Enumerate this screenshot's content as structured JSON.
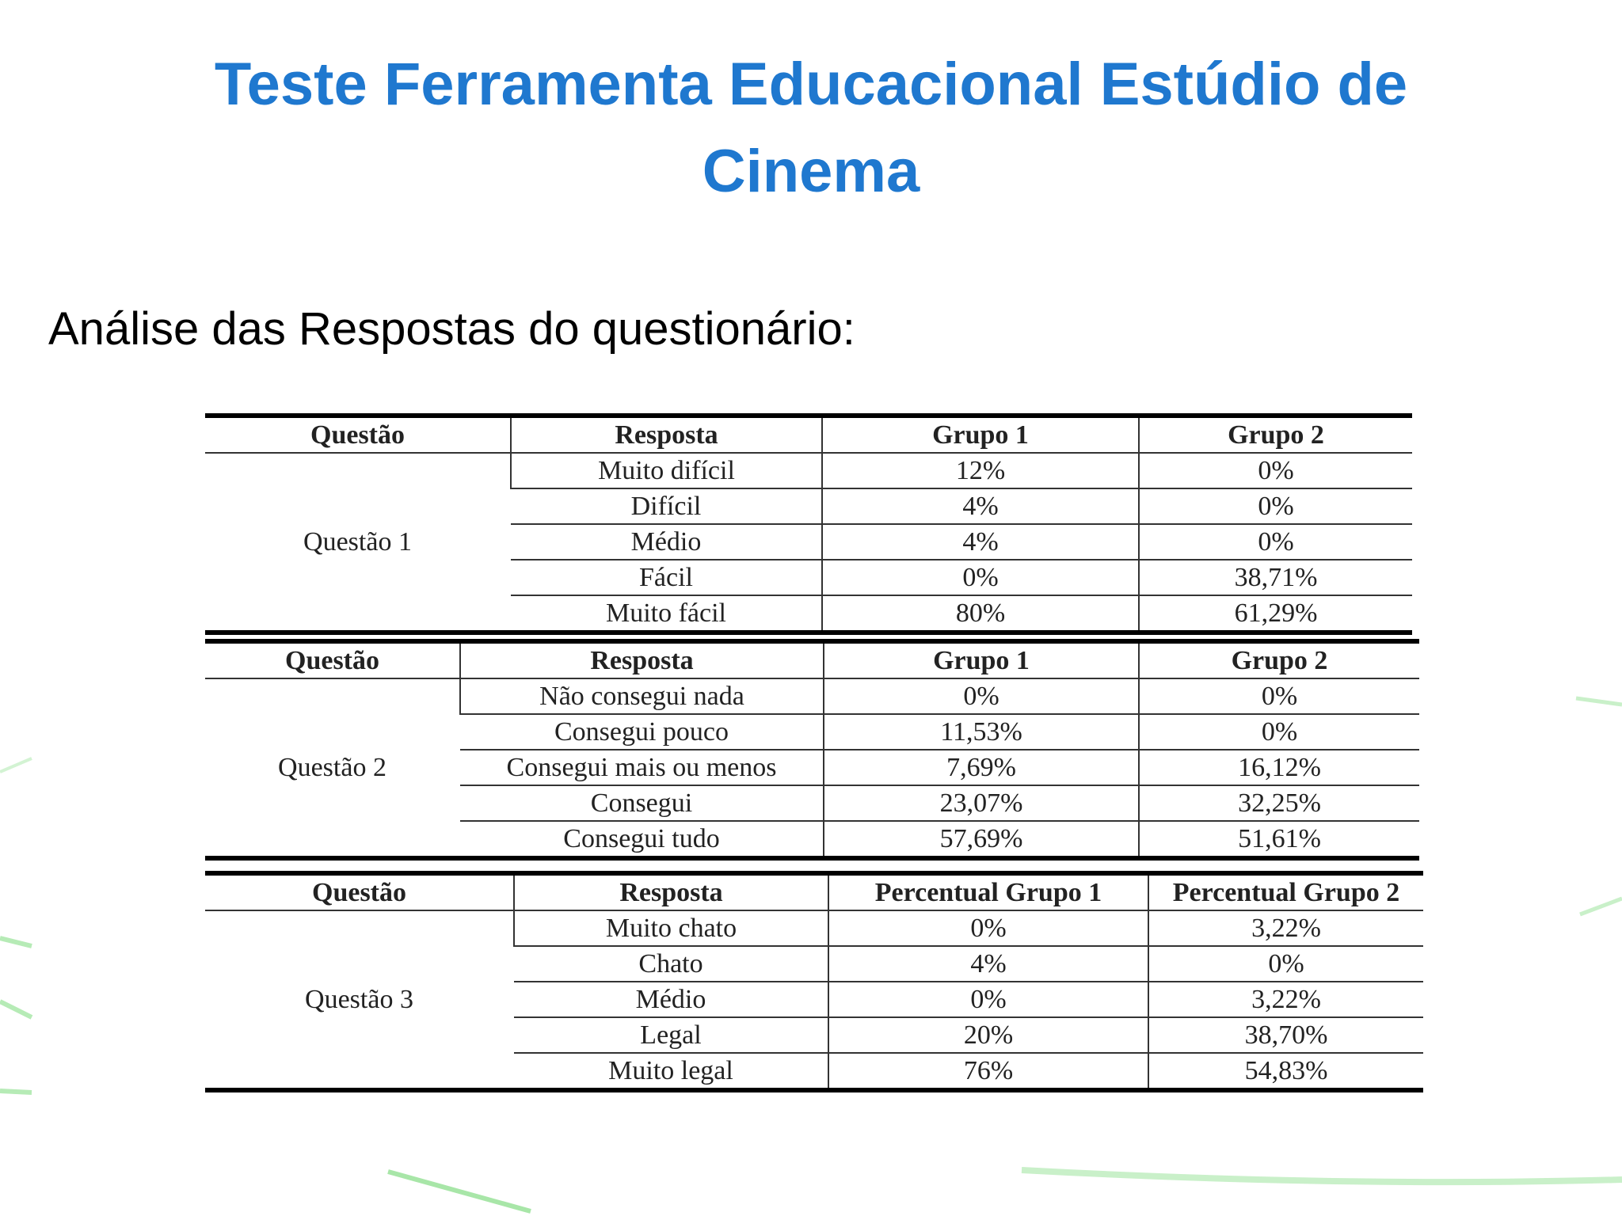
{
  "header": {
    "title": "Teste Ferramenta Educacional Estúdio de Cinema",
    "subtitle": "Análise das Respostas do questionário:"
  },
  "tables": [
    {
      "headers": [
        "Questão",
        "Resposta",
        "Grupo 1",
        "Grupo 2"
      ],
      "question": "Questão 1",
      "rows": [
        [
          "Muito difícil",
          "12%",
          "0%"
        ],
        [
          "Difícil",
          "4%",
          "0%"
        ],
        [
          "Médio",
          "4%",
          "0%"
        ],
        [
          "Fácil",
          "0%",
          "38,71%"
        ],
        [
          "Muito fácil",
          "80%",
          "61,29%"
        ]
      ]
    },
    {
      "headers": [
        "Questão",
        "Resposta",
        "Grupo 1",
        "Grupo 2"
      ],
      "question": "Questão 2",
      "rows": [
        [
          "Não consegui nada",
          "0%",
          "0%"
        ],
        [
          "Consegui pouco",
          "11,53%",
          "0%"
        ],
        [
          "Consegui mais ou menos",
          "7,69%",
          "16,12%"
        ],
        [
          "Consegui",
          "23,07%",
          "32,25%"
        ],
        [
          "Consegui tudo",
          "57,69%",
          "51,61%"
        ]
      ]
    },
    {
      "headers": [
        "Questão",
        "Resposta",
        "Percentual Grupo 1",
        "Percentual Grupo 2"
      ],
      "question": "Questão 3",
      "rows": [
        [
          "Muito chato",
          "0%",
          "3,22%"
        ],
        [
          "Chato",
          "4%",
          "0%"
        ],
        [
          "Médio",
          "0%",
          "3,22%"
        ],
        [
          "Legal",
          "20%",
          "38,70%"
        ],
        [
          "Muito legal",
          "76%",
          "54,83%"
        ]
      ]
    }
  ]
}
